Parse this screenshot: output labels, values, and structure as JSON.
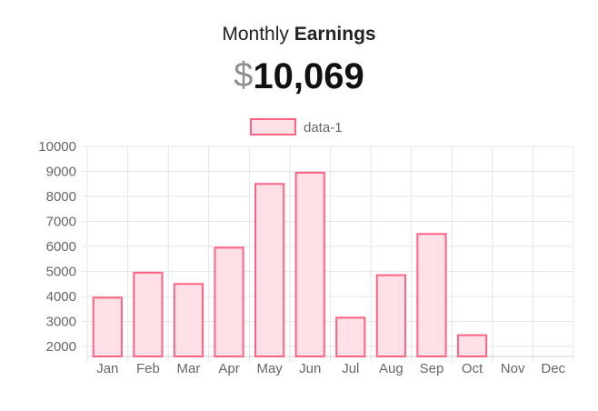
{
  "header": {
    "title_light": "Monthly",
    "title_bold": "Earnings",
    "currency_symbol": "$",
    "amount": "10,069"
  },
  "chart_data": {
    "type": "bar",
    "categories": [
      "Jan",
      "Feb",
      "Mar",
      "Apr",
      "May",
      "Jun",
      "Jul",
      "Aug",
      "Sep",
      "Oct",
      "Nov",
      "Dec"
    ],
    "series": [
      {
        "name": "data-1",
        "values": [
          3950,
          4950,
          4500,
          5950,
          8500,
          8950,
          3150,
          4850,
          6500,
          2450,
          null,
          null
        ]
      }
    ],
    "title": "",
    "xlabel": "",
    "ylabel": "",
    "ylim": [
      1750,
      10000
    ],
    "yticks": [
      10000,
      9000,
      8000,
      7000,
      6000,
      5000,
      4000,
      3000,
      2000
    ],
    "grid": true,
    "legend": "top-center",
    "colors": {
      "fill": "#ffe0e6",
      "stroke": "#ff6384",
      "grid": "#e6e6e6",
      "tick_text": "#666666"
    }
  }
}
